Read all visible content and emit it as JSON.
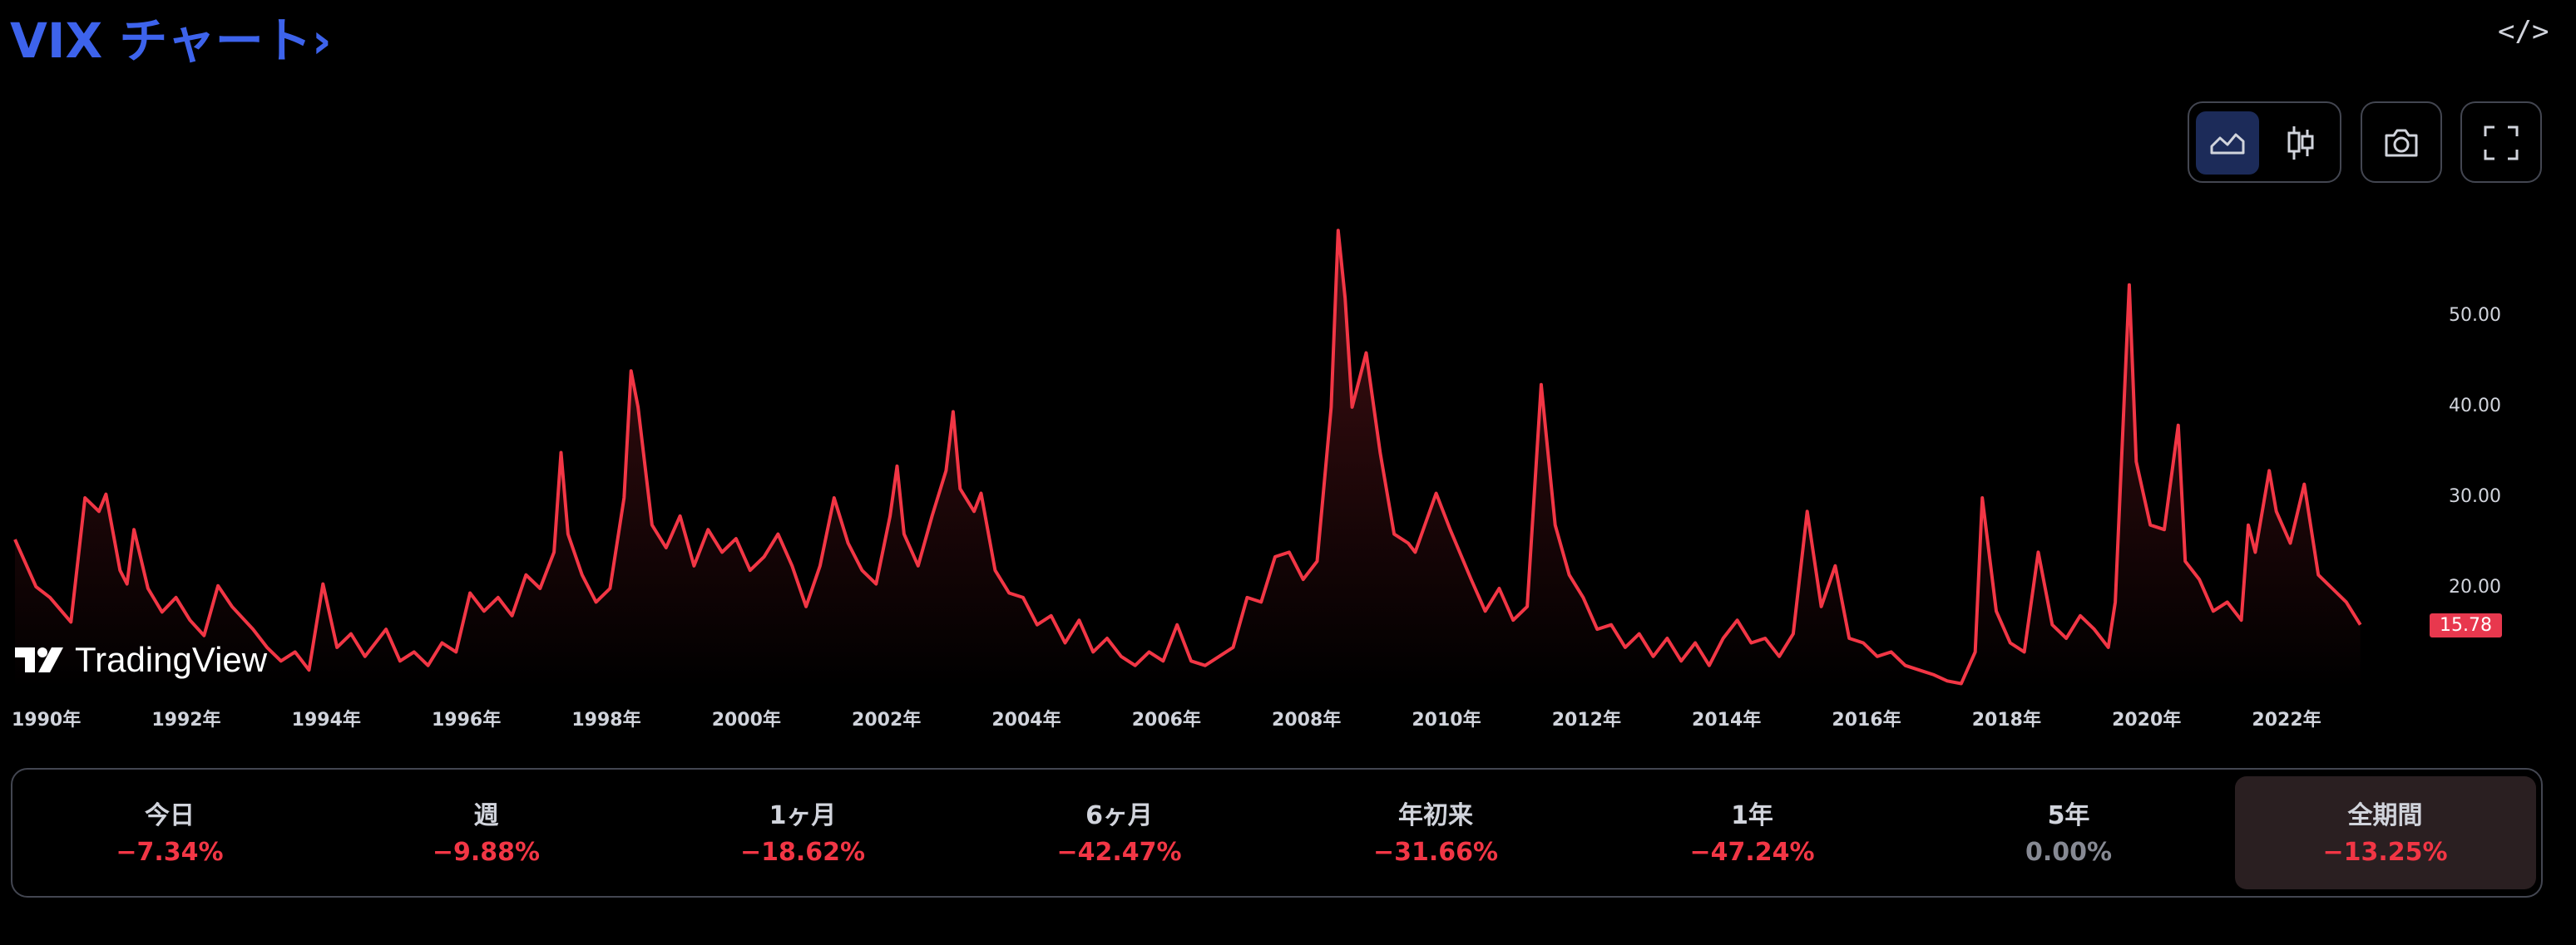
{
  "header": {
    "title": "VIX チャート",
    "title_arrow": "›",
    "embed_icon": "code-brackets-icon",
    "embed_glyph": "</>"
  },
  "toolbar": {
    "area_chart_icon": "area-chart-icon",
    "candles_icon": "candlestick-icon",
    "snapshot_icon": "camera-icon",
    "fullscreen_icon": "fullscreen-icon",
    "active_style": "area"
  },
  "brand": {
    "logo_text": "TradingView"
  },
  "colors": {
    "line": "#f23645",
    "title": "#3d63ec",
    "negative": "#f23645",
    "neutral": "#868993",
    "active_cell": "#2a1f21"
  },
  "chart_data": {
    "type": "area",
    "symbol": "VIX",
    "ylim": [
      9,
      62
    ],
    "y_ticks": [
      "50.00",
      "40.00",
      "30.00",
      "20.00"
    ],
    "last_value": "15.78",
    "x_ticks": [
      "1990年",
      "1992年",
      "1994年",
      "1996年",
      "1998年",
      "2000年",
      "2002年",
      "2004年",
      "2006年",
      "2008年",
      "2010年",
      "2012年",
      "2014年",
      "2016年",
      "2018年",
      "2020年",
      "2022年"
    ],
    "x_range": [
      1990.0,
      2024.3
    ],
    "points": [
      [
        1990.0,
        25.4
      ],
      [
        1990.3,
        20.2
      ],
      [
        1990.5,
        19.0
      ],
      [
        1990.8,
        16.3
      ],
      [
        1991.0,
        30.0
      ],
      [
        1991.2,
        28.5
      ],
      [
        1991.3,
        30.4
      ],
      [
        1991.5,
        22.0
      ],
      [
        1991.6,
        20.5
      ],
      [
        1991.7,
        26.5
      ],
      [
        1991.9,
        20.0
      ],
      [
        1992.1,
        17.4
      ],
      [
        1992.3,
        19.0
      ],
      [
        1992.5,
        16.5
      ],
      [
        1992.7,
        14.8
      ],
      [
        1992.9,
        20.3
      ],
      [
        1993.1,
        18.0
      ],
      [
        1993.4,
        15.5
      ],
      [
        1993.6,
        13.5
      ],
      [
        1993.8,
        12.0
      ],
      [
        1994.0,
        13.0
      ],
      [
        1994.2,
        11.0
      ],
      [
        1994.4,
        20.5
      ],
      [
        1994.6,
        13.5
      ],
      [
        1994.8,
        15.0
      ],
      [
        1995.0,
        12.5
      ],
      [
        1995.3,
        15.5
      ],
      [
        1995.5,
        12.0
      ],
      [
        1995.7,
        13.0
      ],
      [
        1995.9,
        11.5
      ],
      [
        1996.1,
        14.0
      ],
      [
        1996.3,
        13.0
      ],
      [
        1996.5,
        19.5
      ],
      [
        1996.7,
        17.5
      ],
      [
        1996.9,
        19.0
      ],
      [
        1997.1,
        17.0
      ],
      [
        1997.3,
        21.5
      ],
      [
        1997.5,
        20.0
      ],
      [
        1997.7,
        24.0
      ],
      [
        1997.8,
        35.0
      ],
      [
        1997.9,
        26.0
      ],
      [
        1998.1,
        21.5
      ],
      [
        1998.3,
        18.5
      ],
      [
        1998.5,
        20.0
      ],
      [
        1998.7,
        30.0
      ],
      [
        1998.8,
        44.0
      ],
      [
        1998.9,
        40.0
      ],
      [
        1999.1,
        27.0
      ],
      [
        1999.3,
        24.5
      ],
      [
        1999.5,
        28.0
      ],
      [
        1999.7,
        22.5
      ],
      [
        1999.9,
        26.5
      ],
      [
        2000.1,
        24.0
      ],
      [
        2000.3,
        25.5
      ],
      [
        2000.5,
        22.0
      ],
      [
        2000.7,
        23.5
      ],
      [
        2000.9,
        26.0
      ],
      [
        2001.1,
        22.5
      ],
      [
        2001.3,
        18.0
      ],
      [
        2001.5,
        22.5
      ],
      [
        2001.7,
        30.0
      ],
      [
        2001.9,
        25.0
      ],
      [
        2002.1,
        22.0
      ],
      [
        2002.3,
        20.5
      ],
      [
        2002.5,
        28.0
      ],
      [
        2002.6,
        33.5
      ],
      [
        2002.7,
        26.0
      ],
      [
        2002.9,
        22.5
      ],
      [
        2003.1,
        28.0
      ],
      [
        2003.3,
        33.0
      ],
      [
        2003.4,
        39.5
      ],
      [
        2003.5,
        31.0
      ],
      [
        2003.7,
        28.5
      ],
      [
        2003.8,
        30.5
      ],
      [
        2004.0,
        22.0
      ],
      [
        2004.2,
        19.5
      ],
      [
        2004.4,
        19.0
      ],
      [
        2004.6,
        16.0
      ],
      [
        2004.8,
        17.0
      ],
      [
        2005.0,
        14.0
      ],
      [
        2005.2,
        16.5
      ],
      [
        2005.4,
        13.0
      ],
      [
        2005.6,
        14.5
      ],
      [
        2005.8,
        12.5
      ],
      [
        2006.0,
        11.5
      ],
      [
        2006.2,
        13.0
      ],
      [
        2006.4,
        12.0
      ],
      [
        2006.6,
        16.0
      ],
      [
        2006.8,
        12.0
      ],
      [
        2007.0,
        11.5
      ],
      [
        2007.2,
        12.5
      ],
      [
        2007.4,
        13.5
      ],
      [
        2007.6,
        19.0
      ],
      [
        2007.8,
        18.5
      ],
      [
        2008.0,
        23.5
      ],
      [
        2008.2,
        24.0
      ],
      [
        2008.4,
        21.0
      ],
      [
        2008.6,
        23.0
      ],
      [
        2008.8,
        40.0
      ],
      [
        2008.9,
        59.5
      ],
      [
        2009.0,
        52.0
      ],
      [
        2009.1,
        40.0
      ],
      [
        2009.3,
        46.0
      ],
      [
        2009.5,
        35.0
      ],
      [
        2009.7,
        26.0
      ],
      [
        2009.9,
        25.0
      ],
      [
        2010.0,
        24.0
      ],
      [
        2010.3,
        30.5
      ],
      [
        2010.5,
        26.5
      ],
      [
        2010.8,
        21.0
      ],
      [
        2011.0,
        17.5
      ],
      [
        2011.2,
        20.0
      ],
      [
        2011.4,
        16.5
      ],
      [
        2011.6,
        18.0
      ],
      [
        2011.8,
        42.5
      ],
      [
        2012.0,
        27.0
      ],
      [
        2012.2,
        21.5
      ],
      [
        2012.4,
        19.0
      ],
      [
        2012.6,
        15.5
      ],
      [
        2012.8,
        16.0
      ],
      [
        2013.0,
        13.5
      ],
      [
        2013.2,
        15.0
      ],
      [
        2013.4,
        12.5
      ],
      [
        2013.6,
        14.5
      ],
      [
        2013.8,
        12.0
      ],
      [
        2014.0,
        14.0
      ],
      [
        2014.2,
        11.5
      ],
      [
        2014.4,
        14.5
      ],
      [
        2014.6,
        16.5
      ],
      [
        2014.8,
        14.0
      ],
      [
        2015.0,
        14.5
      ],
      [
        2015.2,
        12.5
      ],
      [
        2015.4,
        15.0
      ],
      [
        2015.6,
        28.5
      ],
      [
        2015.8,
        18.0
      ],
      [
        2016.0,
        22.5
      ],
      [
        2016.2,
        14.5
      ],
      [
        2016.4,
        14.0
      ],
      [
        2016.6,
        12.5
      ],
      [
        2016.8,
        13.0
      ],
      [
        2017.0,
        11.5
      ],
      [
        2017.2,
        11.0
      ],
      [
        2017.4,
        10.5
      ],
      [
        2017.6,
        9.8
      ],
      [
        2017.8,
        9.5
      ],
      [
        2018.0,
        13.0
      ],
      [
        2018.1,
        30.0
      ],
      [
        2018.3,
        17.5
      ],
      [
        2018.5,
        14.0
      ],
      [
        2018.7,
        13.0
      ],
      [
        2018.9,
        24.0
      ],
      [
        2019.1,
        16.0
      ],
      [
        2019.3,
        14.5
      ],
      [
        2019.5,
        17.0
      ],
      [
        2019.7,
        15.5
      ],
      [
        2019.9,
        13.5
      ],
      [
        2020.0,
        18.5
      ],
      [
        2020.2,
        53.5
      ],
      [
        2020.3,
        34.0
      ],
      [
        2020.5,
        27.0
      ],
      [
        2020.7,
        26.5
      ],
      [
        2020.9,
        38.0
      ],
      [
        2021.0,
        23.0
      ],
      [
        2021.2,
        21.0
      ],
      [
        2021.4,
        17.5
      ],
      [
        2021.6,
        18.5
      ],
      [
        2021.8,
        16.5
      ],
      [
        2021.9,
        27.0
      ],
      [
        2022.0,
        24.0
      ],
      [
        2022.2,
        33.0
      ],
      [
        2022.3,
        28.5
      ],
      [
        2022.5,
        25.0
      ],
      [
        2022.7,
        31.5
      ],
      [
        2022.9,
        21.5
      ],
      [
        2023.1,
        20.0
      ],
      [
        2023.3,
        18.5
      ],
      [
        2023.5,
        16.0
      ]
    ]
  },
  "performance": [
    {
      "label": "今日",
      "value": "−7.34%",
      "tone": "negative"
    },
    {
      "label": "週",
      "value": "−9.88%",
      "tone": "negative"
    },
    {
      "label": "1ヶ月",
      "value": "−18.62%",
      "tone": "negative"
    },
    {
      "label": "6ヶ月",
      "value": "−42.47%",
      "tone": "negative"
    },
    {
      "label": "年初来",
      "value": "−31.66%",
      "tone": "negative"
    },
    {
      "label": "1年",
      "value": "−47.24%",
      "tone": "negative"
    },
    {
      "label": "5年",
      "value": "0.00%",
      "tone": "neutral"
    },
    {
      "label": "全期間",
      "value": "−13.25%",
      "tone": "negative",
      "active": true
    }
  ]
}
